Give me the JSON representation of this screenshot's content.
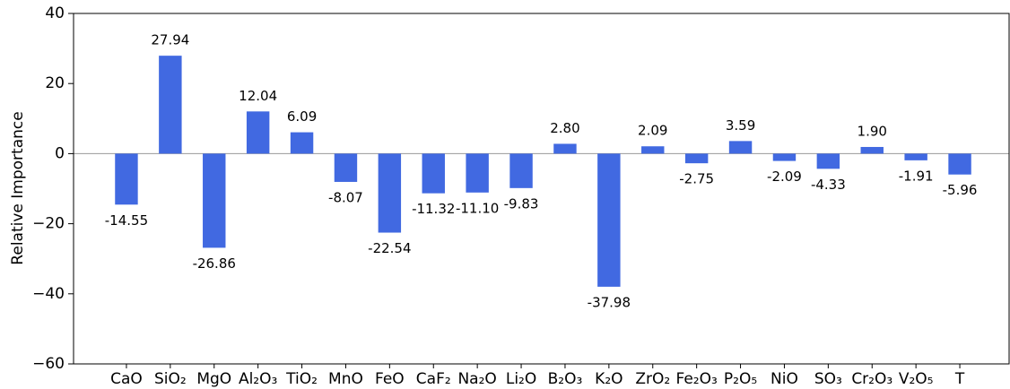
{
  "chart_data": {
    "type": "bar",
    "y_label": "Relative Importance",
    "categories": [
      "CaO",
      "SiO₂",
      "MgO",
      "Al₂O₃",
      "TiO₂",
      "MnO",
      "FeO",
      "CaF₂",
      "Na₂O",
      "Li₂O",
      "B₂O₃",
      "K₂O",
      "ZrO₂",
      "Fe₂O₃",
      "P₂O₅",
      "NiO",
      "SO₃",
      "Cr₂O₃",
      "V₂O₅",
      "T"
    ],
    "values": [
      -14.55,
      27.94,
      -26.86,
      12.04,
      6.09,
      -8.07,
      -22.54,
      -11.32,
      -11.1,
      -9.83,
      2.8,
      -37.98,
      2.09,
      -2.75,
      3.59,
      -2.09,
      -4.33,
      1.9,
      -1.91,
      -5.96
    ],
    "value_labels": [
      "-14.55",
      "27.94",
      "-26.86",
      "12.04",
      "6.09",
      "-8.07",
      "-22.54",
      "-11.32",
      "-11.10",
      "-9.83",
      "2.80",
      "-37.98",
      "2.09",
      "-2.75",
      "3.59",
      "-2.09",
      "-4.33",
      "1.90",
      "-1.91",
      "-5.96"
    ],
    "color": "#4169e1",
    "ylim": [
      -60,
      40
    ],
    "yticks": [
      {
        "value": -60,
        "label": "−60"
      },
      {
        "value": -40,
        "label": "−40"
      },
      {
        "value": -20,
        "label": "−20"
      },
      0,
      20,
      40
    ],
    "grid": false
  }
}
